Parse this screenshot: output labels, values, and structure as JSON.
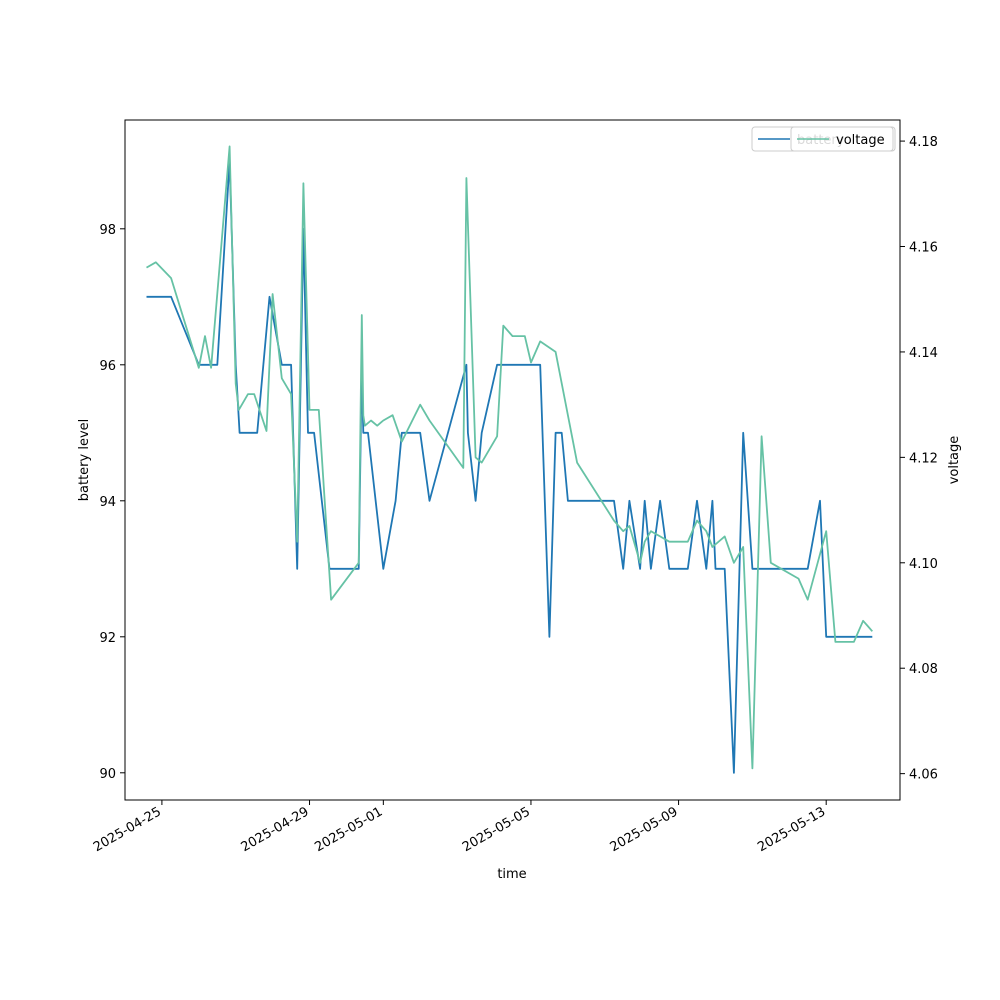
{
  "chart_data": {
    "type": "line",
    "xlabel": "time",
    "ylabel_left": "battery level",
    "ylabel_right": "voltage",
    "x_range": [
      "2025-04-24",
      "2025-05-15"
    ],
    "ylim_left": [
      89.6,
      99.6
    ],
    "ylim_right": [
      4.055,
      4.184
    ],
    "x_ticks": [
      "2025-04-25",
      "2025-04-29",
      "2025-05-01",
      "2025-05-05",
      "2025-05-09",
      "2025-05-13"
    ],
    "y_ticks_left": [
      "90",
      "92",
      "94",
      "96",
      "98"
    ],
    "y_ticks_right": [
      "4.06",
      "4.08",
      "4.10",
      "4.12",
      "4.14",
      "4.16",
      "4.18"
    ],
    "grid": false,
    "legend_position": "top-right",
    "series": [
      {
        "name": "battery",
        "axis": "left",
        "color": "#1f77b4",
        "x": [
          "2025-04-24T14:00",
          "2025-04-25T03:00",
          "2025-04-25T06:00",
          "2025-04-26T00:00",
          "2025-04-26T06:00",
          "2025-04-26T12:00",
          "2025-04-26T20:00",
          "2025-04-27T00:00",
          "2025-04-27T02:30",
          "2025-04-27T04:00",
          "2025-04-27T14:00",
          "2025-04-27T22:00",
          "2025-04-28T06:00",
          "2025-04-28T12:00",
          "2025-04-28T16:00",
          "2025-04-28T20:00",
          "2025-04-28T23:00",
          "2025-04-29T03:00",
          "2025-04-29T13:00",
          "2025-04-30T08:00",
          "2025-04-30T10:00",
          "2025-04-30T11:00",
          "2025-04-30T12:00",
          "2025-04-30T14:00",
          "2025-05-01T00:00",
          "2025-05-01T08:00",
          "2025-05-01T12:00",
          "2025-05-02T00:00",
          "2025-05-02T06:00",
          "2025-05-03T06:00",
          "2025-05-03T07:00",
          "2025-05-03T12:00",
          "2025-05-03T16:00",
          "2025-05-04T02:00",
          "2025-05-04T06:00",
          "2025-05-05T06:00",
          "2025-05-05T12:00",
          "2025-05-05T16:00",
          "2025-05-05T20:00",
          "2025-05-06T00:00",
          "2025-05-07T06:00",
          "2025-05-07T12:00",
          "2025-05-07T16:00",
          "2025-05-07T23:00",
          "2025-05-08T02:00",
          "2025-05-08T06:00",
          "2025-05-08T12:00",
          "2025-05-08T18:00",
          "2025-05-09T06:00",
          "2025-05-09T12:00",
          "2025-05-09T18:00",
          "2025-05-09T22:00",
          "2025-05-10T00:00",
          "2025-05-10T06:00",
          "2025-05-10T12:00",
          "2025-05-10T18:00",
          "2025-05-11T00:00",
          "2025-05-11T06:00",
          "2025-05-11T12:00",
          "2025-05-12T12:00",
          "2025-05-12T20:00",
          "2025-05-13T00:00",
          "2025-05-13T12:00",
          "2025-05-14T00:00",
          "2025-05-14T06:00"
        ],
        "y": [
          97,
          97,
          97,
          96,
          96,
          96,
          99,
          96,
          95,
          95,
          95,
          97,
          96,
          96,
          93,
          98,
          95,
          95,
          93,
          93,
          96,
          95,
          95,
          95,
          93,
          94,
          95,
          95,
          94,
          96,
          95,
          94,
          95,
          96,
          96,
          96,
          92,
          95,
          95,
          94,
          94,
          93,
          94,
          93,
          94,
          93,
          94,
          93,
          93,
          94,
          93,
          94,
          93,
          93,
          90,
          95,
          93,
          93,
          93,
          93,
          94,
          92,
          92,
          92,
          92
        ]
      },
      {
        "name": "voltage",
        "axis": "right",
        "color": "#66c2a5",
        "x": [
          "2025-04-24T14:00",
          "2025-04-24T20:00",
          "2025-04-25T06:00",
          "2025-04-26T00:00",
          "2025-04-26T04:00",
          "2025-04-26T08:00",
          "2025-04-26T20:00",
          "2025-04-27T00:00",
          "2025-04-27T02:00",
          "2025-04-27T08:00",
          "2025-04-27T12:00",
          "2025-04-27T20:00",
          "2025-04-28T00:00",
          "2025-04-28T06:00",
          "2025-04-28T12:00",
          "2025-04-28T16:00",
          "2025-04-28T20:00",
          "2025-04-29T00:00",
          "2025-04-29T06:00",
          "2025-04-29T14:00",
          "2025-04-30T08:00",
          "2025-04-30T10:00",
          "2025-04-30T11:00",
          "2025-04-30T12:00",
          "2025-04-30T16:00",
          "2025-04-30T20:00",
          "2025-05-01T00:00",
          "2025-05-01T06:00",
          "2025-05-01T12:00",
          "2025-05-02T00:00",
          "2025-05-02T06:00",
          "2025-05-03T04:00",
          "2025-05-03T06:00",
          "2025-05-03T12:00",
          "2025-05-03T16:00",
          "2025-05-04T02:00",
          "2025-05-04T06:00",
          "2025-05-04T12:00",
          "2025-05-04T20:00",
          "2025-05-05T00:00",
          "2025-05-05T06:00",
          "2025-05-05T16:00",
          "2025-05-06T06:00",
          "2025-05-07T06:00",
          "2025-05-07T12:00",
          "2025-05-07T16:00",
          "2025-05-07T23:00",
          "2025-05-08T02:00",
          "2025-05-08T06:00",
          "2025-05-08T12:00",
          "2025-05-08T18:00",
          "2025-05-09T06:00",
          "2025-05-09T12:00",
          "2025-05-09T18:00",
          "2025-05-09T22:00",
          "2025-05-10T06:00",
          "2025-05-10T12:00",
          "2025-05-10T18:00",
          "2025-05-11T00:00",
          "2025-05-11T06:00",
          "2025-05-11T12:00",
          "2025-05-12T06:00",
          "2025-05-12T12:00",
          "2025-05-13T00:00",
          "2025-05-13T06:00",
          "2025-05-13T18:00",
          "2025-05-14T00:00",
          "2025-05-14T03:00",
          "2025-05-14T06:00"
        ],
        "y": [
          4.156,
          4.157,
          4.154,
          4.137,
          4.143,
          4.137,
          4.179,
          4.134,
          4.129,
          4.132,
          4.132,
          4.125,
          4.151,
          4.135,
          4.132,
          4.104,
          4.172,
          4.129,
          4.129,
          4.093,
          4.1,
          4.147,
          4.128,
          4.126,
          4.127,
          4.126,
          4.127,
          4.128,
          4.123,
          4.13,
          4.127,
          4.118,
          4.173,
          4.12,
          4.119,
          4.124,
          4.145,
          4.143,
          4.143,
          4.138,
          4.142,
          4.14,
          4.119,
          4.108,
          4.106,
          4.107,
          4.1,
          4.104,
          4.106,
          4.105,
          4.104,
          4.104,
          4.108,
          4.106,
          4.103,
          4.105,
          4.1,
          4.103,
          4.061,
          4.124,
          4.1,
          4.097,
          4.093,
          4.106,
          4.085,
          4.085,
          4.089,
          4.088,
          4.087
        ]
      }
    ]
  }
}
